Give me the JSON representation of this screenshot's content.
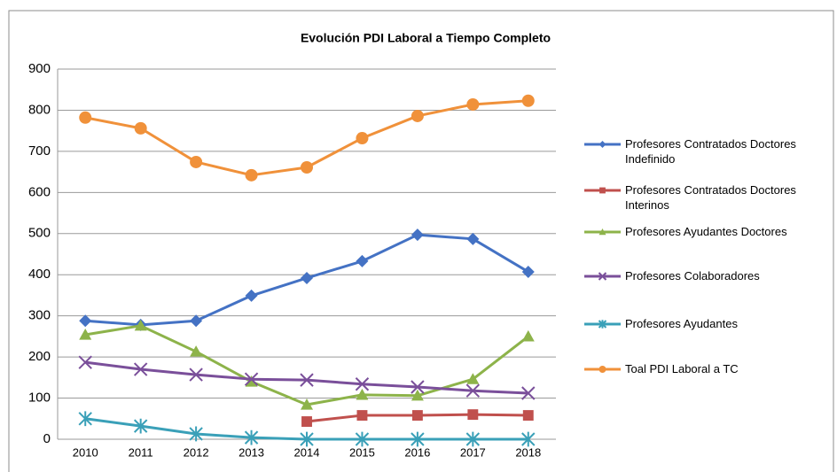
{
  "chart_data": {
    "type": "line",
    "title": "Evolución PDI Laboral a Tiempo Completo",
    "categories": [
      "2010",
      "2011",
      "2012",
      "2013",
      "2014",
      "2015",
      "2016",
      "2017",
      "2018"
    ],
    "ylim": [
      0,
      900
    ],
    "yticks": [
      0,
      100,
      200,
      300,
      400,
      500,
      600,
      700,
      800,
      900
    ],
    "grid": true,
    "legend": "right",
    "series": [
      {
        "name": "Profesores Contratados Doctores Indefinido",
        "color": "#4472c4",
        "marker": "diamond",
        "values": [
          288,
          278,
          288,
          349,
          392,
          433,
          497,
          487,
          407
        ]
      },
      {
        "name": "Profesores Contratados Doctores Interinos",
        "color": "#c0504d",
        "marker": "square",
        "values": [
          null,
          null,
          null,
          null,
          43,
          58,
          58,
          60,
          58
        ]
      },
      {
        "name": "Profesores Ayudantes Doctores",
        "color": "#8db34a",
        "marker": "triangle",
        "values": [
          254,
          276,
          213,
          140,
          84,
          108,
          106,
          146,
          250
        ]
      },
      {
        "name": "Profesores Colaboradores",
        "color": "#7a4f9a",
        "marker": "x",
        "values": [
          187,
          170,
          157,
          146,
          144,
          134,
          127,
          118,
          112
        ]
      },
      {
        "name": "Profesores Ayudantes",
        "color": "#3aa0b8",
        "marker": "star",
        "values": [
          50,
          32,
          13,
          4,
          0,
          0,
          0,
          0,
          0
        ]
      },
      {
        "name": "Toal PDI Laboral a TC",
        "color": "#f0913a",
        "marker": "circle",
        "values": [
          782,
          756,
          674,
          642,
          661,
          732,
          786,
          814,
          823
        ]
      }
    ]
  }
}
